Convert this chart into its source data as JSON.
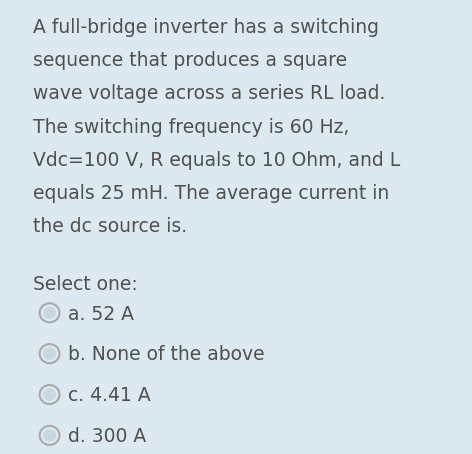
{
  "background_color": "#dce9f0",
  "outer_background": "#ffffff",
  "card_background": "#dce9f0",
  "question_lines": [
    "A full-bridge inverter has a switching",
    "sequence that produces a square",
    "wave voltage across a series RL load.",
    "The switching frequency is 60 Hz,",
    "Vdc=100 V, R equals to 10 Ohm, and L",
    "equals 25 mH. The average current in",
    "the dc source is."
  ],
  "select_label": "Select one:",
  "options": [
    "a. 52 A",
    "b. None of the above",
    "c. 4.41 A",
    "d. 300 A"
  ],
  "text_color": "#505050",
  "font_size": 13.5,
  "circle_edge_color": "#aaaaaa",
  "circle_face_color": "#dce9f0",
  "circle_inner_color": "#c8d8e0"
}
